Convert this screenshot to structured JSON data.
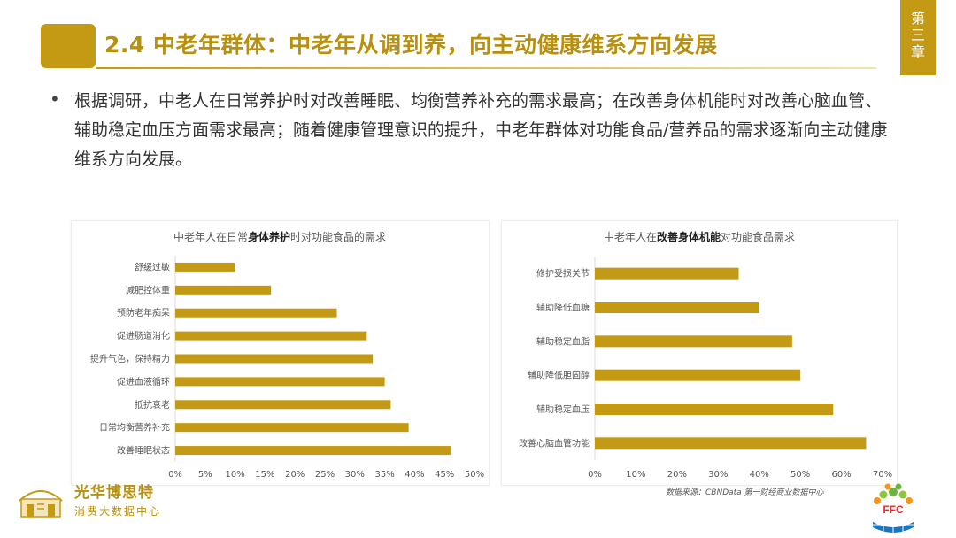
{
  "header": {
    "title": "2.4 中老年群体：中老年从调到养，向主动健康维系方向发展",
    "chapter": [
      "第",
      "三",
      "章"
    ]
  },
  "body": {
    "bullet": "•",
    "paragraph": "根据调研，中老人在日常养护时对改善睡眠、均衡营养补充的需求最高；在改善身体机能时对改善心脑血管、辅助稳定血压方面需求最高；随着健康管理意识的提升，中老年群体对功能食品/营养品的需求逐渐向主动健康维系方向发展。"
  },
  "colors": {
    "accent": "#c49a14",
    "bar": "#c49a14",
    "title": "#b8900f"
  },
  "chart_data": [
    {
      "type": "bar",
      "orientation": "horizontal",
      "title_parts": [
        "中老年人在日常",
        "身体养护",
        "时对功能食品的需求"
      ],
      "categories": [
        "舒缓过敏",
        "减肥控体重",
        "预防老年痴呆",
        "促进肠道消化",
        "提升气色，保持精力",
        "促进血液循环",
        "抵抗衰老",
        "日常均衡营养补充",
        "改善睡眠状态"
      ],
      "values": [
        10,
        16,
        27,
        32,
        33,
        35,
        36,
        39,
        46
      ],
      "xlim": [
        0,
        50
      ],
      "xticks": [
        "0%",
        "5%",
        "10%",
        "15%",
        "20%",
        "25%",
        "30%",
        "35%",
        "40%",
        "45%",
        "50%"
      ],
      "grid": false
    },
    {
      "type": "bar",
      "orientation": "horizontal",
      "title_parts": [
        "中老年人在",
        "改善身体机能",
        "对功能食品需求"
      ],
      "categories": [
        "修护受损关节",
        "辅助降低血糖",
        "辅助稳定血脂",
        "辅助降低胆固醇",
        "辅助稳定血压",
        "改善心脑血管功能"
      ],
      "values": [
        35,
        40,
        48,
        50,
        58,
        66
      ],
      "xlim": [
        0,
        70
      ],
      "xticks": [
        "0%",
        "10%",
        "20%",
        "30%",
        "40%",
        "50%",
        "60%",
        "70%"
      ],
      "grid": false
    }
  ],
  "footer": {
    "source": "数据来源：CBNData 第一财经商业数据中心",
    "brand_left_line1": "光华博思特",
    "brand_left_line2": "消费大数据中心",
    "brand_right": "FFC"
  }
}
